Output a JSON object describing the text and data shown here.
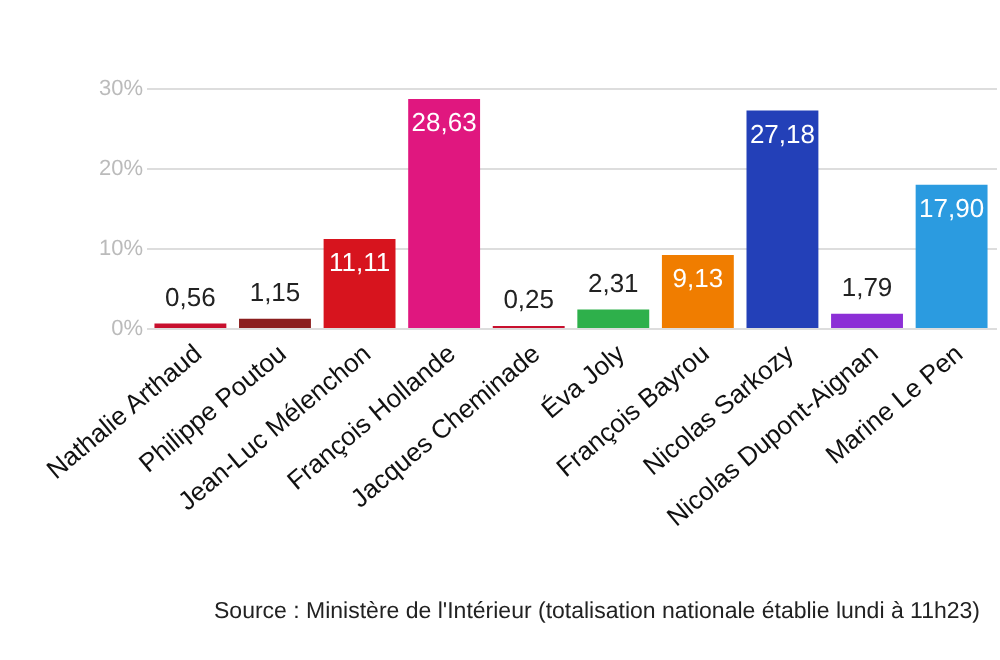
{
  "chart_data": {
    "type": "bar",
    "categories": [
      "Nathalie Arthaud",
      "Philippe Poutou",
      "Jean-Luc Mélenchon",
      "François Hollande",
      "Jacques Cheminade",
      "Éva Joly",
      "François Bayrou",
      "Nicolas Sarkozy",
      "Nicolas Dupont-Aignan",
      "Marine Le Pen"
    ],
    "values": [
      0.56,
      1.15,
      11.11,
      28.63,
      0.25,
      2.31,
      9.13,
      27.18,
      1.79,
      17.9
    ],
    "value_labels": [
      "0,56",
      "1,15",
      "11,11",
      "28,63",
      "0,25",
      "2,31",
      "9,13",
      "27,18",
      "1,79",
      "17,90"
    ],
    "colors": [
      "#c8102e",
      "#8b1e1e",
      "#d7141e",
      "#e0177f",
      "#c8102e",
      "#2eb04b",
      "#f07d00",
      "#2340b8",
      "#8c2fd6",
      "#2b9be0"
    ],
    "ylim": [
      0,
      30
    ],
    "yticks": [
      {
        "value": 0,
        "label": "0%"
      },
      {
        "value": 10,
        "label": "10%"
      },
      {
        "value": 20,
        "label": "20%"
      },
      {
        "value": 30,
        "label": "30%"
      }
    ],
    "grid": "y",
    "annotations": [
      "Source : Ministère de l'Intérieur (totalisation nationale établie lundi à 11h23)"
    ]
  }
}
